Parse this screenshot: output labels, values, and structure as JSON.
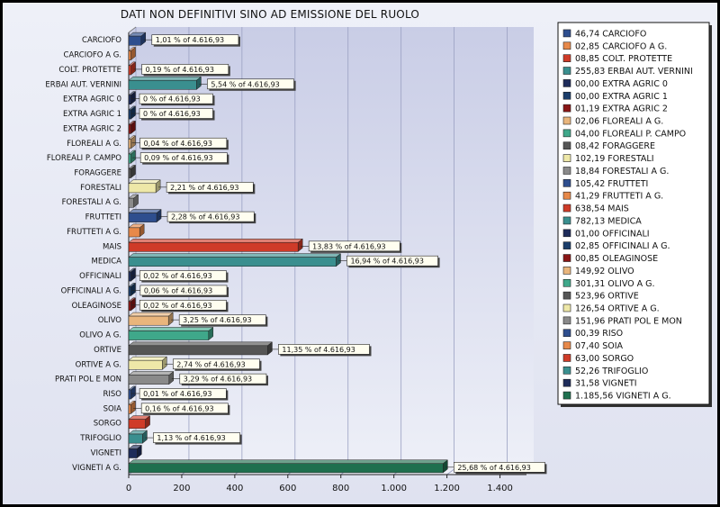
{
  "chart_data": {
    "type": "bar",
    "orientation": "horizontal",
    "title": "DATI NON DEFINITIVI SINO AD EMISSIONE DEL RUOLO",
    "xlim": [
      0,
      1500
    ],
    "x_ticks": [
      "0",
      "200",
      "400",
      "600",
      "800",
      "1.000",
      "1.200",
      "1.400"
    ],
    "x_tick_values": [
      0,
      200,
      400,
      600,
      800,
      1000,
      1200,
      1400
    ],
    "grid": true,
    "legend_position": "right",
    "categories": [
      "CARCIOFO",
      "CARCIOFO A G.",
      "COLT. PROTETTE",
      "ERBAI AUT. VERNINI",
      "EXTRA AGRIC 0",
      "EXTRA AGRIC 1",
      "EXTRA AGRIC 2",
      "FLOREALI A G.",
      "FLOREALI P. CAMPO",
      "FORAGGERE",
      "FORESTALI",
      "FORESTALI A G.",
      "FRUTTETI",
      "FRUTTETI A G.",
      "MAIS",
      "MEDICA",
      "OFFICINALI",
      "OFFICINALI A G.",
      "OLEAGINOSE",
      "OLIVO",
      "OLIVO A G.",
      "ORTIVE",
      "ORTIVE A G.",
      "PRATI POL E MON",
      "RISO",
      "SOIA",
      "SORGO",
      "TRIFOGLIO",
      "VIGNETI",
      "VIGNETI A G."
    ],
    "values": [
      46.74,
      2.85,
      8.85,
      255.83,
      0,
      0,
      1.19,
      2.06,
      4.0,
      8.42,
      102.19,
      18.84,
      105.42,
      41.29,
      638.54,
      782.13,
      1.0,
      2.85,
      0.85,
      149.92,
      301.31,
      523.96,
      126.54,
      151.96,
      0.39,
      7.4,
      63.0,
      52.26,
      31.58,
      1185.56
    ],
    "colors": [
      "#2e4e8e",
      "#e7894a",
      "#cf3b28",
      "#3a8f8f",
      "#1e2c5a",
      "#1a3d6a",
      "#8a1616",
      "#e9b57c",
      "#3fa88a",
      "#555555",
      "#eee8a8",
      "#8a8a8a",
      "#2e4e8e",
      "#e7894a",
      "#cf3b28",
      "#3a8f8f",
      "#1e2c5a",
      "#1a3d6a",
      "#8a1616",
      "#e9b57c",
      "#3fa88a",
      "#555555",
      "#eee8a8",
      "#8a8a8a",
      "#2e4e8e",
      "#e7894a",
      "#cf3b28",
      "#3a8f8f",
      "#1e2c5a",
      "#1e6f4e"
    ],
    "data_labels": [
      {
        "index": 0,
        "text": "1,01 % of 4.616,93"
      },
      {
        "index": 2,
        "text": "0,19 % of 4.616,93"
      },
      {
        "index": 3,
        "text": "5,54 % of 4.616,93"
      },
      {
        "index": 4,
        "text": "0 % of 4.616,93"
      },
      {
        "index": 5,
        "text": "0 % of 4.616,93"
      },
      {
        "index": 7,
        "text": "0,04 % of 4.616,93"
      },
      {
        "index": 8,
        "text": "0,09 % of 4.616,93"
      },
      {
        "index": 10,
        "text": "2,21 % of 4.616,93"
      },
      {
        "index": 12,
        "text": "2,28 % of 4.616,93"
      },
      {
        "index": 14,
        "text": "13,83 % of 4.616,93"
      },
      {
        "index": 15,
        "text": "16,94 % of 4.616,93"
      },
      {
        "index": 16,
        "text": "0,02 % of 4.616,93"
      },
      {
        "index": 17,
        "text": "0,06 % of 4.616,93"
      },
      {
        "index": 18,
        "text": "0,02 % of 4.616,93"
      },
      {
        "index": 19,
        "text": "3,25 % of 4.616,93"
      },
      {
        "index": 21,
        "text": "11,35 % of 4.616,93"
      },
      {
        "index": 22,
        "text": "2,74 % of 4.616,93"
      },
      {
        "index": 23,
        "text": "3,29 % of 4.616,93"
      },
      {
        "index": 24,
        "text": "0,01 % of 4.616,93"
      },
      {
        "index": 25,
        "text": "0,16 % of 4.616,93"
      },
      {
        "index": 27,
        "text": "1,13 % of 4.616,93"
      },
      {
        "index": 29,
        "text": "25,68 % of 4.616,93"
      }
    ],
    "legend": [
      "46,74 CARCIOFO",
      "02,85 CARCIOFO A G.",
      "08,85 COLT. PROTETTE",
      "255,83 ERBAI AUT. VERNINI",
      "00,00 EXTRA AGRIC 0",
      "00,00 EXTRA AGRIC 1",
      "01,19 EXTRA AGRIC 2",
      "02,06 FLOREALI A G.",
      "04,00 FLOREALI P. CAMPO",
      "08,42 FORAGGERE",
      "102,19 FORESTALI",
      "18,84 FORESTALI A G.",
      "105,42 FRUTTETI",
      "41,29 FRUTTETI A G.",
      "638,54 MAIS",
      "782,13 MEDICA",
      "01,00 OFFICINALI",
      "02,85 OFFICINALI A G.",
      "00,85 OLEAGINOSE",
      "149,92 OLIVO",
      "301,31 OLIVO A G.",
      "523,96 ORTIVE",
      "126,54 ORTIVE A G.",
      "151,96 PRATI POL E MON",
      "00,39 RISO",
      "07,40 SOIA",
      "63,00 SORGO",
      "52,26 TRIFOGLIO",
      "31,58 VIGNETI",
      "1.185,56 VIGNETI A G."
    ]
  }
}
